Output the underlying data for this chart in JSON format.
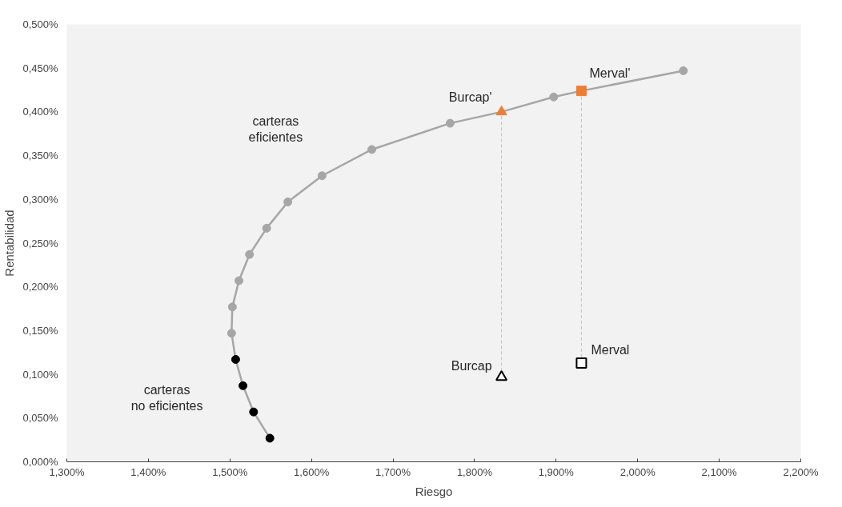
{
  "chart_data": {
    "type": "scatter",
    "xlabel": "Riesgo",
    "ylabel": "Rentabilidad",
    "xlim": [
      1.3,
      2.2
    ],
    "ylim": [
      0,
      0.5
    ],
    "xticks": [
      {
        "value": 1.3,
        "label": "1,300%"
      },
      {
        "value": 1.4,
        "label": "1,400%"
      },
      {
        "value": 1.5,
        "label": "1,500%"
      },
      {
        "value": 1.6,
        "label": "1,600%"
      },
      {
        "value": 1.7,
        "label": "1,700%"
      },
      {
        "value": 1.8,
        "label": "1,800%"
      },
      {
        "value": 1.9,
        "label": "1,900%"
      },
      {
        "value": 2.0,
        "label": "2,000%"
      },
      {
        "value": 2.1,
        "label": "2,100%"
      },
      {
        "value": 2.2,
        "label": "2,200%"
      }
    ],
    "yticks": [
      {
        "value": 0,
        "label": "0,000%"
      },
      {
        "value": 0.05,
        "label": "0,050%"
      },
      {
        "value": 0.1,
        "label": "0,100%"
      },
      {
        "value": 0.15,
        "label": "0,150%"
      },
      {
        "value": 0.2,
        "label": "0,200%"
      },
      {
        "value": 0.25,
        "label": "0,250%"
      },
      {
        "value": 0.3,
        "label": "0,300%"
      },
      {
        "value": 0.35,
        "label": "0,350%"
      },
      {
        "value": 0.4,
        "label": "0,400%"
      },
      {
        "value": 0.45,
        "label": "0,450%"
      },
      {
        "value": 0.5,
        "label": "0,500%"
      }
    ],
    "series": [
      {
        "type": "line",
        "marker": "none",
        "color": "#a6a6a6",
        "x": [
          1.549,
          1.529,
          1.516,
          1.507,
          1.502,
          1.503,
          1.511,
          1.524,
          1.545,
          1.571,
          1.613,
          1.674,
          1.77,
          1.833,
          1.897,
          1.931,
          2.056
        ],
        "values": [
          0.027,
          0.057,
          0.087,
          0.117,
          0.147,
          0.177,
          0.207,
          0.237,
          0.267,
          0.297,
          0.327,
          0.357,
          0.387,
          0.4,
          0.417,
          0.424,
          0.447
        ]
      },
      {
        "type": "line",
        "marker": "none",
        "line_style": "dashed",
        "color": "#bfbfbf",
        "x": [
          1.833,
          1.833
        ],
        "values": [
          0.097,
          0.4
        ]
      },
      {
        "type": "line",
        "marker": "none",
        "line_style": "dashed",
        "color": "#bfbfbf",
        "x": [
          1.931,
          1.931
        ],
        "values": [
          0.113,
          0.424
        ]
      },
      {
        "name": "carteras\neficientes",
        "marker": "circle",
        "color": "#a6a6a6",
        "x": [
          1.502,
          1.503,
          1.511,
          1.524,
          1.545,
          1.571,
          1.613,
          1.674,
          1.77,
          1.897,
          2.056
        ],
        "values": [
          0.147,
          0.177,
          0.207,
          0.237,
          0.267,
          0.297,
          0.327,
          0.357,
          0.387,
          0.417,
          0.447
        ]
      },
      {
        "name": "carteras\nno eficientes",
        "marker": "circle",
        "color": "#000000",
        "x": [
          1.549,
          1.529,
          1.516,
          1.507
        ],
        "values": [
          0.027,
          0.057,
          0.087,
          0.117
        ]
      },
      {
        "name": "Burcap'",
        "marker": "triangle",
        "color": "#ed7d31",
        "x": [
          1.833
        ],
        "values": [
          0.4
        ]
      },
      {
        "name": "Merval'",
        "marker": "square",
        "color": "#ed7d31",
        "x": [
          1.931
        ],
        "values": [
          0.424
        ]
      },
      {
        "name": "Burcap",
        "marker": "triangle",
        "color": "#000000",
        "x": [
          1.833
        ],
        "values": [
          0.097
        ]
      },
      {
        "name": "Merval",
        "marker": "square",
        "color": "#000000",
        "x": [
          1.931
        ],
        "values": [
          0.113
        ]
      }
    ]
  }
}
